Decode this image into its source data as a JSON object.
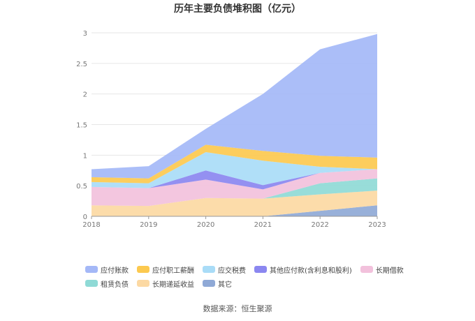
{
  "chart_data": {
    "type": "area",
    "title": "历年主要负债堆积图（亿元）",
    "categories": [
      "2018",
      "2019",
      "2020",
      "2021",
      "2022",
      "2023"
    ],
    "ylim": [
      0,
      3
    ],
    "yticks": [
      "0",
      "0.5",
      "1",
      "1.5",
      "2",
      "2.5",
      "3"
    ],
    "grid": true,
    "legend_position": "bottom",
    "series": [
      {
        "name": "其它",
        "color": "#8fa9d6",
        "values": [
          0.0,
          0.0,
          0.0,
          0.0,
          0.09,
          0.18
        ]
      },
      {
        "name": "长期递延收益",
        "color": "#fcd9a3",
        "values": [
          0.18,
          0.17,
          0.3,
          0.29,
          0.27,
          0.24
        ]
      },
      {
        "name": "租赁负债",
        "color": "#8fdad6",
        "values": [
          0.0,
          0.0,
          0.0,
          0.0,
          0.18,
          0.2
        ]
      },
      {
        "name": "长期借款",
        "color": "#f2c1dc",
        "values": [
          0.3,
          0.29,
          0.3,
          0.15,
          0.17,
          0.15
        ]
      },
      {
        "name": "其他应付款(含利息和股利)",
        "color": "#8b87f0",
        "values": [
          0.0,
          0.0,
          0.15,
          0.07,
          0.0,
          0.0
        ]
      },
      {
        "name": "应交税费",
        "color": "#a9dcf7",
        "values": [
          0.08,
          0.08,
          0.3,
          0.4,
          0.1,
          0.0
        ]
      },
      {
        "name": "应付职工薪酬",
        "color": "#fcc94f",
        "values": [
          0.08,
          0.08,
          0.12,
          0.16,
          0.18,
          0.19
        ]
      },
      {
        "name": "应付账款",
        "color": "#a4b8f7",
        "values": [
          0.13,
          0.2,
          0.26,
          0.93,
          1.74,
          2.02
        ]
      }
    ],
    "legend_order": [
      "应付账款",
      "应付职工薪酬",
      "应交税费",
      "其他应付款(含利息和股利)",
      "长期借款",
      "租赁负债",
      "长期递延收益",
      "其它"
    ]
  },
  "source_text": "数据来源：恒生聚源"
}
